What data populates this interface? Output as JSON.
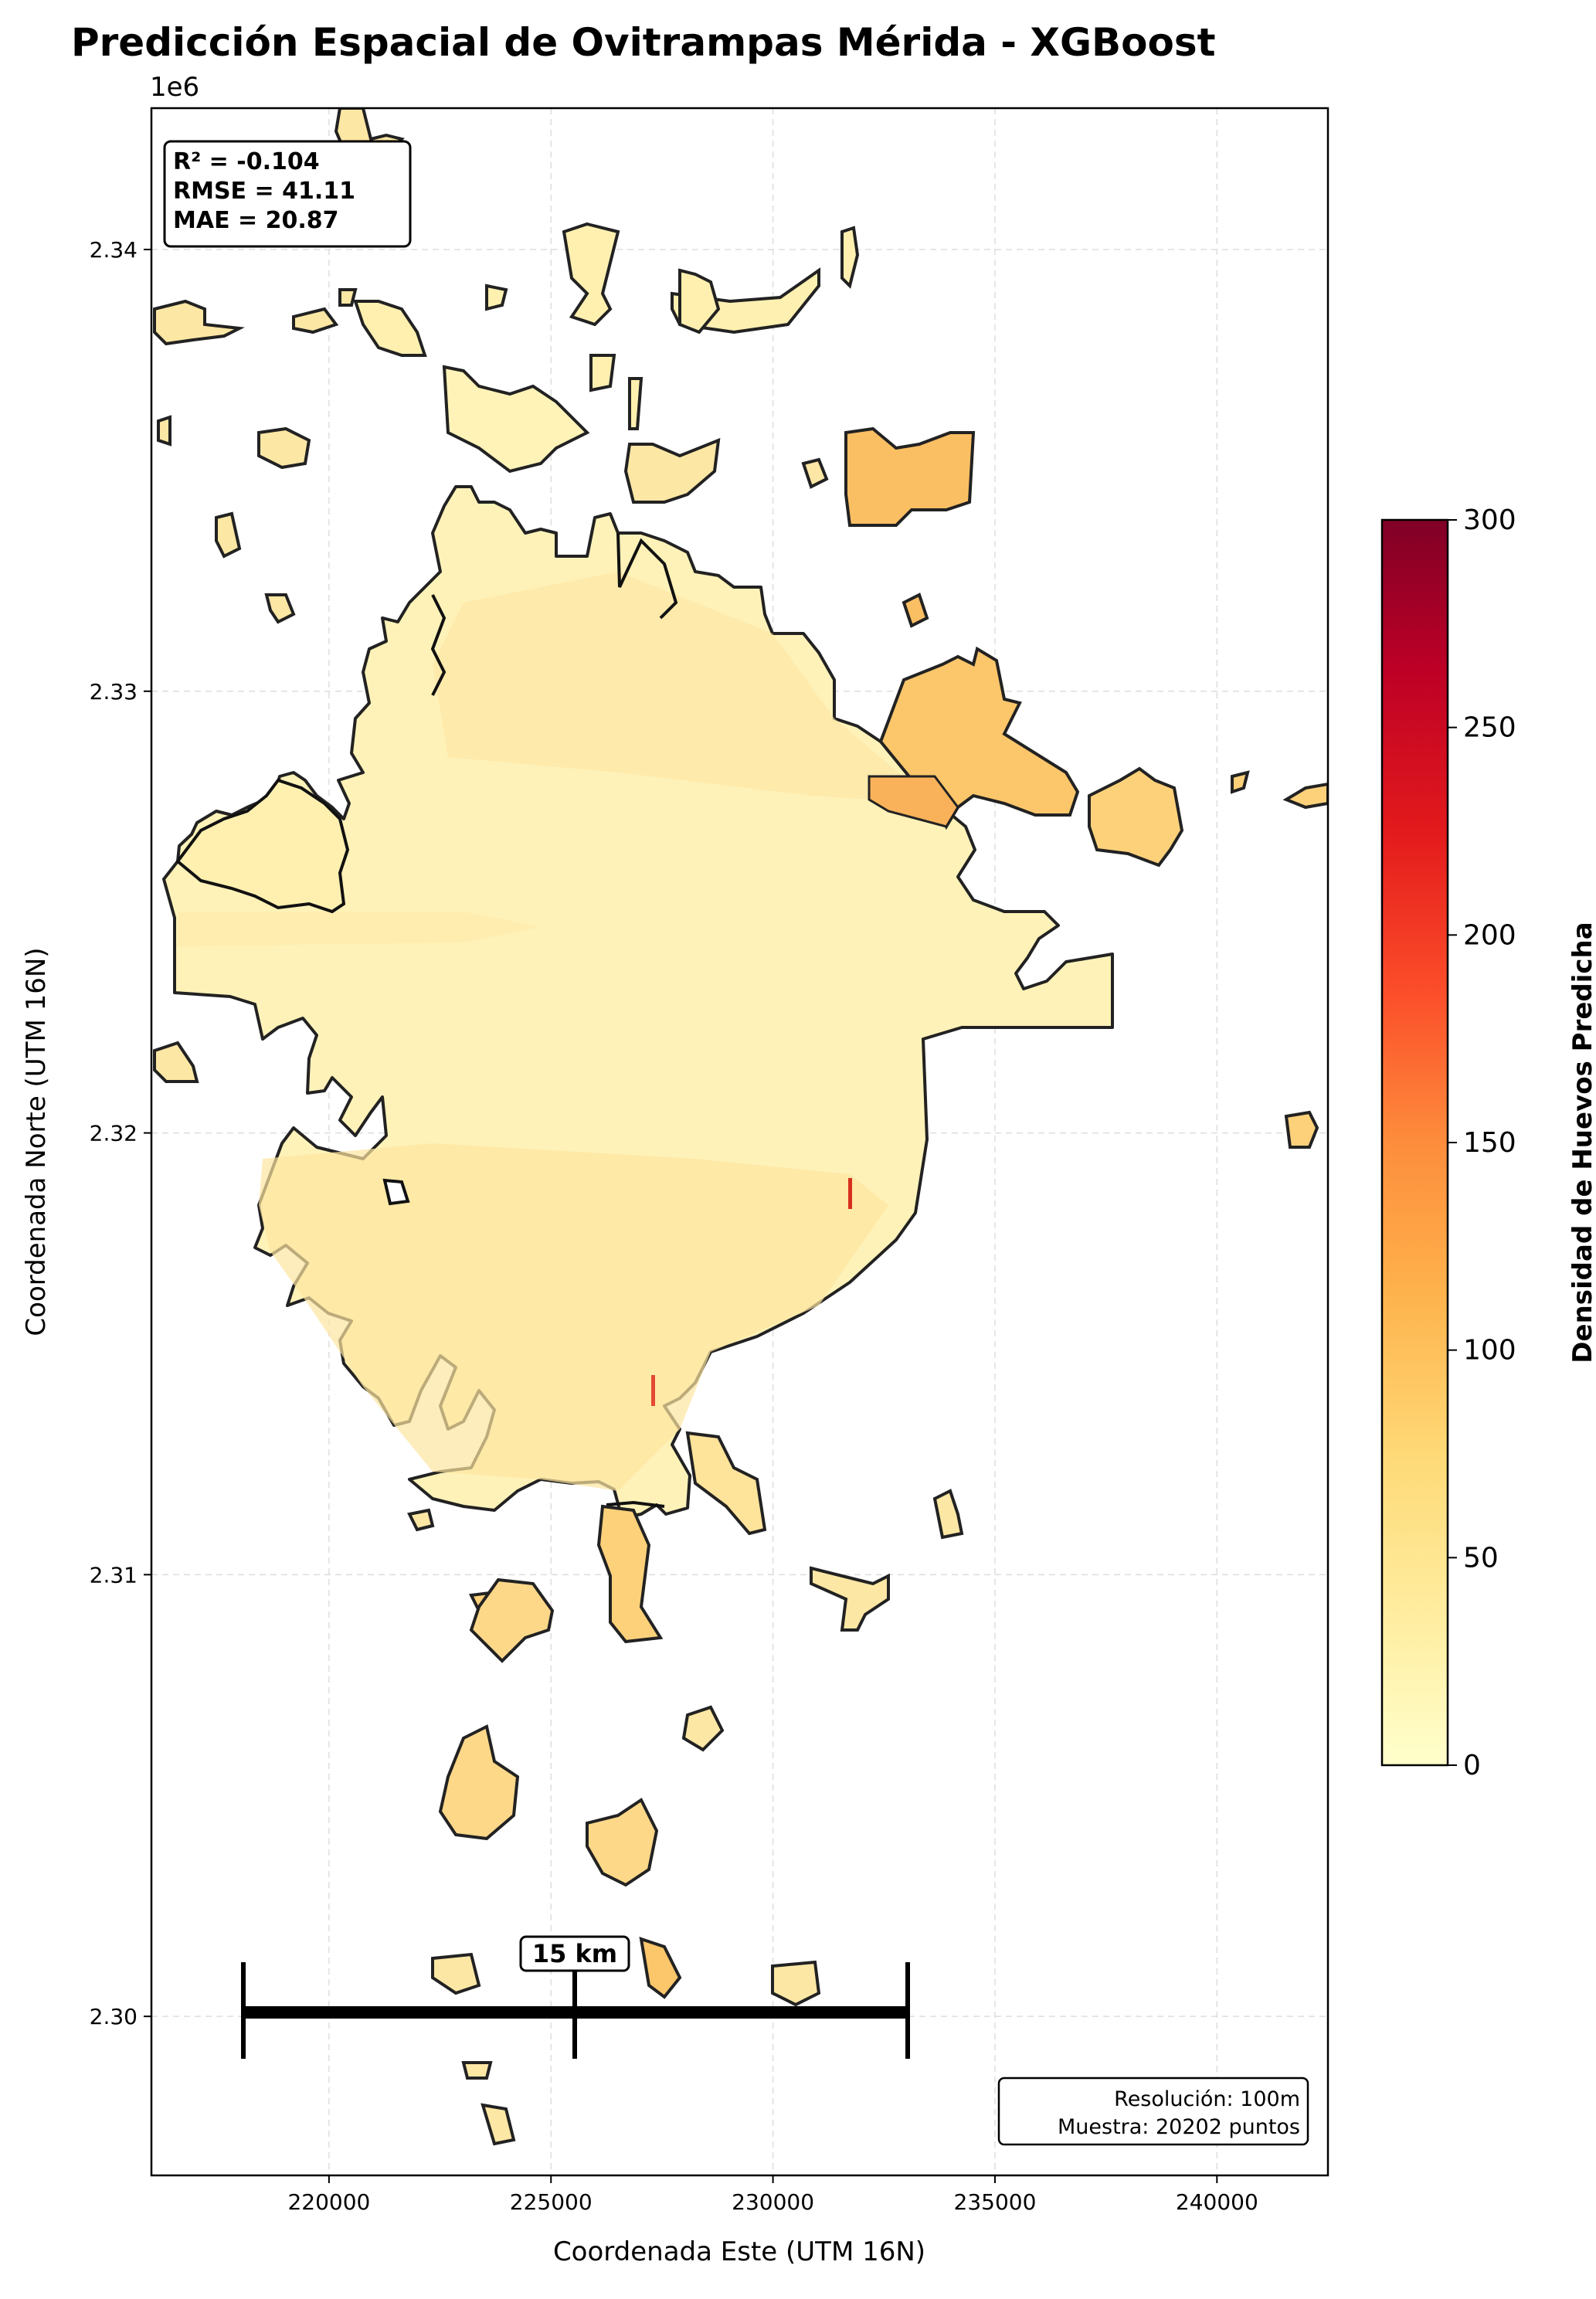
{
  "title": "Predicción Espacial de Ovitrampas Mérida - XGBoost",
  "y_offset_label": "1e6",
  "stats": {
    "r2": "R² = -0.104",
    "rmse": "RMSE = 41.11",
    "mae": "MAE = 20.87"
  },
  "scale_bar_label": "15 km",
  "info_box": {
    "resolution": "Resolución: 100m",
    "sample": "Muestra: 20202 puntos"
  },
  "x_axis": {
    "label": "Coordenada Este (UTM 16N)",
    "range": [
      216000,
      242500
    ],
    "ticks": [
      220000,
      225000,
      230000,
      235000,
      240000
    ],
    "tick_labels": [
      "220000",
      "225000",
      "230000",
      "235000",
      "240000"
    ]
  },
  "y_axis": {
    "label": "Coordenada Norte (UTM 16N)",
    "range": [
      2.2964,
      2.3432
    ],
    "ticks": [
      2.3,
      2.31,
      2.32,
      2.33,
      2.34
    ],
    "tick_labels": [
      "2.30",
      "2.31",
      "2.32",
      "2.33",
      "2.34"
    ]
  },
  "grid": true,
  "colorbar": {
    "label": "Densidad de Huevos Predicha",
    "min": 0,
    "max": 300,
    "ticks": [
      0,
      50,
      100,
      150,
      200,
      250,
      300
    ],
    "tick_labels": [
      "0",
      "50",
      "100",
      "150",
      "200",
      "250",
      "300"
    ],
    "colormap": [
      "#ffffcc",
      "#ffeda0",
      "#fed976",
      "#feb24c",
      "#fd8d3c",
      "#fc4e2a",
      "#e31a1c",
      "#b10026",
      "#800026"
    ]
  },
  "colors": {
    "fill_low": "#fff3b8",
    "fill_mid": "#fdd88a",
    "fill_high": "#fbb863",
    "outline": "#222222",
    "hotspot": "#d7301f"
  }
}
